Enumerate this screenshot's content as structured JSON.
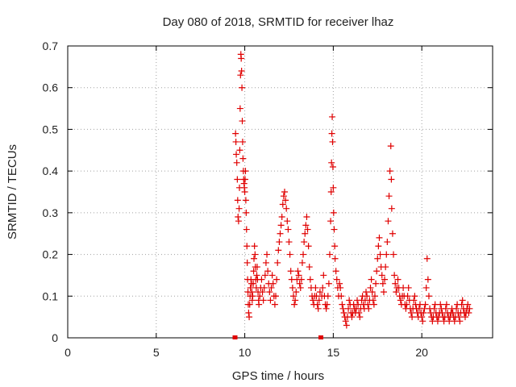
{
  "chart_data": {
    "type": "scatter",
    "title": "Day 080 of 2018, SRMTID for receiver lhaz",
    "xlabel": "GPS time / hours",
    "ylabel": "SRMTID / TECUs",
    "xlim": [
      0,
      24
    ],
    "ylim": [
      0,
      0.7
    ],
    "xticks": [
      0,
      5,
      10,
      15,
      20
    ],
    "xtick_labels": [
      "0",
      "5",
      "10",
      "15",
      "20"
    ],
    "yticks": [
      0,
      0.1,
      0.2,
      0.3,
      0.4,
      0.5,
      0.6,
      0.7
    ],
    "ytick_labels": [
      "0",
      "0.1",
      "0.2",
      "0.3",
      "0.4",
      "0.5",
      "0.6",
      "0.7"
    ],
    "grid": true,
    "marker": "plus",
    "series": [
      {
        "name": "lhaz",
        "color": "#e00000",
        "points": [
          [
            9.45,
            0.0
          ],
          [
            9.48,
            0.49
          ],
          [
            9.5,
            0.47
          ],
          [
            9.52,
            0.44
          ],
          [
            9.55,
            0.42
          ],
          [
            9.58,
            0.38
          ],
          [
            9.6,
            0.33
          ],
          [
            9.62,
            0.29
          ],
          [
            9.65,
            0.28
          ],
          [
            9.68,
            0.31
          ],
          [
            9.7,
            0.36
          ],
          [
            9.72,
            0.45
          ],
          [
            9.74,
            0.55
          ],
          [
            9.76,
            0.63
          ],
          [
            9.78,
            0.68
          ],
          [
            9.8,
            0.67
          ],
          [
            9.82,
            0.64
          ],
          [
            9.84,
            0.6
          ],
          [
            9.86,
            0.52
          ],
          [
            9.88,
            0.47
          ],
          [
            9.9,
            0.43
          ],
          [
            9.92,
            0.4
          ],
          [
            9.94,
            0.38
          ],
          [
            9.96,
            0.37
          ],
          [
            9.98,
            0.36
          ],
          [
            10.0,
            0.35
          ],
          [
            10.02,
            0.38
          ],
          [
            10.04,
            0.4
          ],
          [
            10.06,
            0.33
          ],
          [
            10.08,
            0.3
          ],
          [
            10.1,
            0.26
          ],
          [
            10.12,
            0.22
          ],
          [
            10.14,
            0.18
          ],
          [
            10.16,
            0.14
          ],
          [
            10.18,
            0.11
          ],
          [
            10.2,
            0.08
          ],
          [
            10.22,
            0.06
          ],
          [
            10.25,
            0.05
          ],
          [
            10.28,
            0.08
          ],
          [
            10.3,
            0.1
          ],
          [
            10.32,
            0.12
          ],
          [
            10.35,
            0.14
          ],
          [
            10.38,
            0.13
          ],
          [
            10.4,
            0.11
          ],
          [
            10.42,
            0.09
          ],
          [
            10.45,
            0.1
          ],
          [
            10.48,
            0.13
          ],
          [
            10.5,
            0.16
          ],
          [
            10.52,
            0.19
          ],
          [
            10.55,
            0.22
          ],
          [
            10.58,
            0.2
          ],
          [
            10.6,
            0.17
          ],
          [
            10.62,
            0.14
          ],
          [
            10.65,
            0.12
          ],
          [
            10.68,
            0.15
          ],
          [
            10.7,
            0.17
          ],
          [
            10.72,
            0.14
          ],
          [
            10.75,
            0.11
          ],
          [
            10.78,
            0.09
          ],
          [
            10.8,
            0.08
          ],
          [
            10.85,
            0.1
          ],
          [
            10.9,
            0.12
          ],
          [
            10.95,
            0.14
          ],
          [
            11.0,
            0.11
          ],
          [
            11.05,
            0.09
          ],
          [
            11.1,
            0.12
          ],
          [
            11.15,
            0.15
          ],
          [
            11.2,
            0.18
          ],
          [
            11.25,
            0.2
          ],
          [
            11.3,
            0.16
          ],
          [
            11.35,
            0.13
          ],
          [
            11.4,
            0.11
          ],
          [
            11.45,
            0.09
          ],
          [
            11.5,
            0.12
          ],
          [
            11.55,
            0.15
          ],
          [
            11.6,
            0.13
          ],
          [
            11.65,
            0.1
          ],
          [
            11.7,
            0.08
          ],
          [
            11.75,
            0.1
          ],
          [
            11.8,
            0.14
          ],
          [
            11.85,
            0.18
          ],
          [
            11.9,
            0.21
          ],
          [
            11.95,
            0.23
          ],
          [
            12.0,
            0.25
          ],
          [
            12.05,
            0.27
          ],
          [
            12.1,
            0.29
          ],
          [
            12.15,
            0.32
          ],
          [
            12.2,
            0.34
          ],
          [
            12.25,
            0.35
          ],
          [
            12.3,
            0.33
          ],
          [
            12.35,
            0.31
          ],
          [
            12.4,
            0.28
          ],
          [
            12.45,
            0.26
          ],
          [
            12.5,
            0.23
          ],
          [
            12.55,
            0.2
          ],
          [
            12.6,
            0.16
          ],
          [
            12.65,
            0.14
          ],
          [
            12.7,
            0.12
          ],
          [
            12.75,
            0.1
          ],
          [
            12.8,
            0.08
          ],
          [
            12.85,
            0.09
          ],
          [
            12.9,
            0.11
          ],
          [
            12.95,
            0.14
          ],
          [
            13.0,
            0.16
          ],
          [
            13.05,
            0.15
          ],
          [
            13.1,
            0.13
          ],
          [
            13.15,
            0.12
          ],
          [
            13.2,
            0.14
          ],
          [
            13.25,
            0.18
          ],
          [
            13.3,
            0.2
          ],
          [
            13.35,
            0.23
          ],
          [
            13.4,
            0.25
          ],
          [
            13.45,
            0.27
          ],
          [
            13.5,
            0.29
          ],
          [
            13.55,
            0.26
          ],
          [
            13.6,
            0.22
          ],
          [
            13.65,
            0.17
          ],
          [
            13.7,
            0.14
          ],
          [
            13.75,
            0.12
          ],
          [
            13.8,
            0.1
          ],
          [
            13.85,
            0.09
          ],
          [
            13.9,
            0.08
          ],
          [
            13.95,
            0.1
          ],
          [
            14.0,
            0.12
          ],
          [
            14.05,
            0.1
          ],
          [
            14.1,
            0.08
          ],
          [
            14.15,
            0.07
          ],
          [
            14.2,
            0.09
          ],
          [
            14.25,
            0.11
          ],
          [
            14.3,
            0.0
          ],
          [
            14.35,
            0.1
          ],
          [
            14.4,
            0.12
          ],
          [
            14.45,
            0.15
          ],
          [
            14.5,
            0.1
          ],
          [
            14.55,
            0.08
          ],
          [
            14.6,
            0.07
          ],
          [
            14.65,
            0.08
          ],
          [
            14.7,
            0.1
          ],
          [
            14.75,
            0.13
          ],
          [
            14.8,
            0.2
          ],
          [
            14.85,
            0.28
          ],
          [
            14.88,
            0.35
          ],
          [
            14.9,
            0.42
          ],
          [
            14.92,
            0.49
          ],
          [
            14.94,
            0.53
          ],
          [
            14.96,
            0.47
          ],
          [
            14.98,
            0.41
          ],
          [
            15.0,
            0.36
          ],
          [
            15.02,
            0.3
          ],
          [
            15.05,
            0.26
          ],
          [
            15.08,
            0.22
          ],
          [
            15.1,
            0.19
          ],
          [
            15.15,
            0.16
          ],
          [
            15.2,
            0.14
          ],
          [
            15.25,
            0.12
          ],
          [
            15.3,
            0.1
          ],
          [
            15.35,
            0.13
          ],
          [
            15.4,
            0.12
          ],
          [
            15.45,
            0.1
          ],
          [
            15.5,
            0.08
          ],
          [
            15.55,
            0.07
          ],
          [
            15.6,
            0.06
          ],
          [
            15.65,
            0.05
          ],
          [
            15.7,
            0.04
          ],
          [
            15.75,
            0.03
          ],
          [
            15.8,
            0.05
          ],
          [
            15.85,
            0.07
          ],
          [
            15.9,
            0.09
          ],
          [
            15.95,
            0.08
          ],
          [
            16.0,
            0.06
          ],
          [
            16.05,
            0.05
          ],
          [
            16.1,
            0.06
          ],
          [
            16.15,
            0.08
          ],
          [
            16.2,
            0.07
          ],
          [
            16.25,
            0.06
          ],
          [
            16.3,
            0.07
          ],
          [
            16.35,
            0.09
          ],
          [
            16.4,
            0.08
          ],
          [
            16.45,
            0.06
          ],
          [
            16.5,
            0.05
          ],
          [
            16.55,
            0.07
          ],
          [
            16.6,
            0.09
          ],
          [
            16.65,
            0.1
          ],
          [
            16.7,
            0.08
          ],
          [
            16.75,
            0.07
          ],
          [
            16.8,
            0.09
          ],
          [
            16.85,
            0.11
          ],
          [
            16.9,
            0.1
          ],
          [
            16.95,
            0.08
          ],
          [
            17.0,
            0.07
          ],
          [
            17.05,
            0.09
          ],
          [
            17.1,
            0.12
          ],
          [
            17.15,
            0.14
          ],
          [
            17.2,
            0.11
          ],
          [
            17.25,
            0.09
          ],
          [
            17.3,
            0.08
          ],
          [
            17.35,
            0.1
          ],
          [
            17.4,
            0.13
          ],
          [
            17.45,
            0.16
          ],
          [
            17.5,
            0.19
          ],
          [
            17.55,
            0.22
          ],
          [
            17.6,
            0.24
          ],
          [
            17.65,
            0.2
          ],
          [
            17.7,
            0.17
          ],
          [
            17.75,
            0.15
          ],
          [
            17.8,
            0.13
          ],
          [
            17.85,
            0.11
          ],
          [
            17.9,
            0.14
          ],
          [
            17.95,
            0.17
          ],
          [
            18.0,
            0.2
          ],
          [
            18.05,
            0.23
          ],
          [
            18.1,
            0.28
          ],
          [
            18.15,
            0.34
          ],
          [
            18.2,
            0.4
          ],
          [
            18.25,
            0.46
          ],
          [
            18.28,
            0.38
          ],
          [
            18.3,
            0.31
          ],
          [
            18.35,
            0.25
          ],
          [
            18.4,
            0.2
          ],
          [
            18.45,
            0.15
          ],
          [
            18.5,
            0.13
          ],
          [
            18.55,
            0.11
          ],
          [
            18.6,
            0.12
          ],
          [
            18.65,
            0.14
          ],
          [
            18.7,
            0.12
          ],
          [
            18.75,
            0.1
          ],
          [
            18.8,
            0.09
          ],
          [
            18.85,
            0.08
          ],
          [
            18.9,
            0.1
          ],
          [
            18.95,
            0.12
          ],
          [
            19.0,
            0.1
          ],
          [
            19.05,
            0.08
          ],
          [
            19.1,
            0.07
          ],
          [
            19.15,
            0.08
          ],
          [
            19.2,
            0.1
          ],
          [
            19.25,
            0.12
          ],
          [
            19.3,
            0.09
          ],
          [
            19.35,
            0.07
          ],
          [
            19.4,
            0.06
          ],
          [
            19.45,
            0.05
          ],
          [
            19.5,
            0.07
          ],
          [
            19.55,
            0.09
          ],
          [
            19.6,
            0.1
          ],
          [
            19.65,
            0.08
          ],
          [
            19.7,
            0.07
          ],
          [
            19.75,
            0.06
          ],
          [
            19.8,
            0.05
          ],
          [
            19.85,
            0.07
          ],
          [
            19.9,
            0.08
          ],
          [
            19.95,
            0.06
          ],
          [
            20.0,
            0.05
          ],
          [
            20.05,
            0.04
          ],
          [
            20.1,
            0.06
          ],
          [
            20.15,
            0.07
          ],
          [
            20.2,
            0.08
          ],
          [
            20.25,
            0.12
          ],
          [
            20.3,
            0.19
          ],
          [
            20.35,
            0.14
          ],
          [
            20.4,
            0.1
          ],
          [
            20.45,
            0.07
          ],
          [
            20.5,
            0.06
          ],
          [
            20.55,
            0.05
          ],
          [
            20.6,
            0.04
          ],
          [
            20.65,
            0.05
          ],
          [
            20.7,
            0.07
          ],
          [
            20.75,
            0.08
          ],
          [
            20.8,
            0.06
          ],
          [
            20.85,
            0.05
          ],
          [
            20.9,
            0.04
          ],
          [
            20.95,
            0.05
          ],
          [
            21.0,
            0.06
          ],
          [
            21.05,
            0.08
          ],
          [
            21.1,
            0.07
          ],
          [
            21.15,
            0.06
          ],
          [
            21.2,
            0.05
          ],
          [
            21.25,
            0.04
          ],
          [
            21.3,
            0.05
          ],
          [
            21.35,
            0.07
          ],
          [
            21.4,
            0.08
          ],
          [
            21.45,
            0.06
          ],
          [
            21.5,
            0.05
          ],
          [
            21.55,
            0.04
          ],
          [
            21.6,
            0.05
          ],
          [
            21.65,
            0.06
          ],
          [
            21.7,
            0.07
          ],
          [
            21.75,
            0.06
          ],
          [
            21.8,
            0.05
          ],
          [
            21.85,
            0.04
          ],
          [
            21.9,
            0.05
          ],
          [
            21.95,
            0.07
          ],
          [
            22.0,
            0.08
          ],
          [
            22.05,
            0.06
          ],
          [
            22.1,
            0.05
          ],
          [
            22.15,
            0.04
          ],
          [
            22.2,
            0.06
          ],
          [
            22.25,
            0.08
          ],
          [
            22.3,
            0.09
          ],
          [
            22.35,
            0.07
          ],
          [
            22.4,
            0.06
          ],
          [
            22.45,
            0.05
          ],
          [
            22.5,
            0.06
          ],
          [
            22.55,
            0.07
          ],
          [
            22.6,
            0.08
          ],
          [
            22.65,
            0.06
          ],
          [
            22.7,
            0.07
          ]
        ]
      }
    ]
  }
}
